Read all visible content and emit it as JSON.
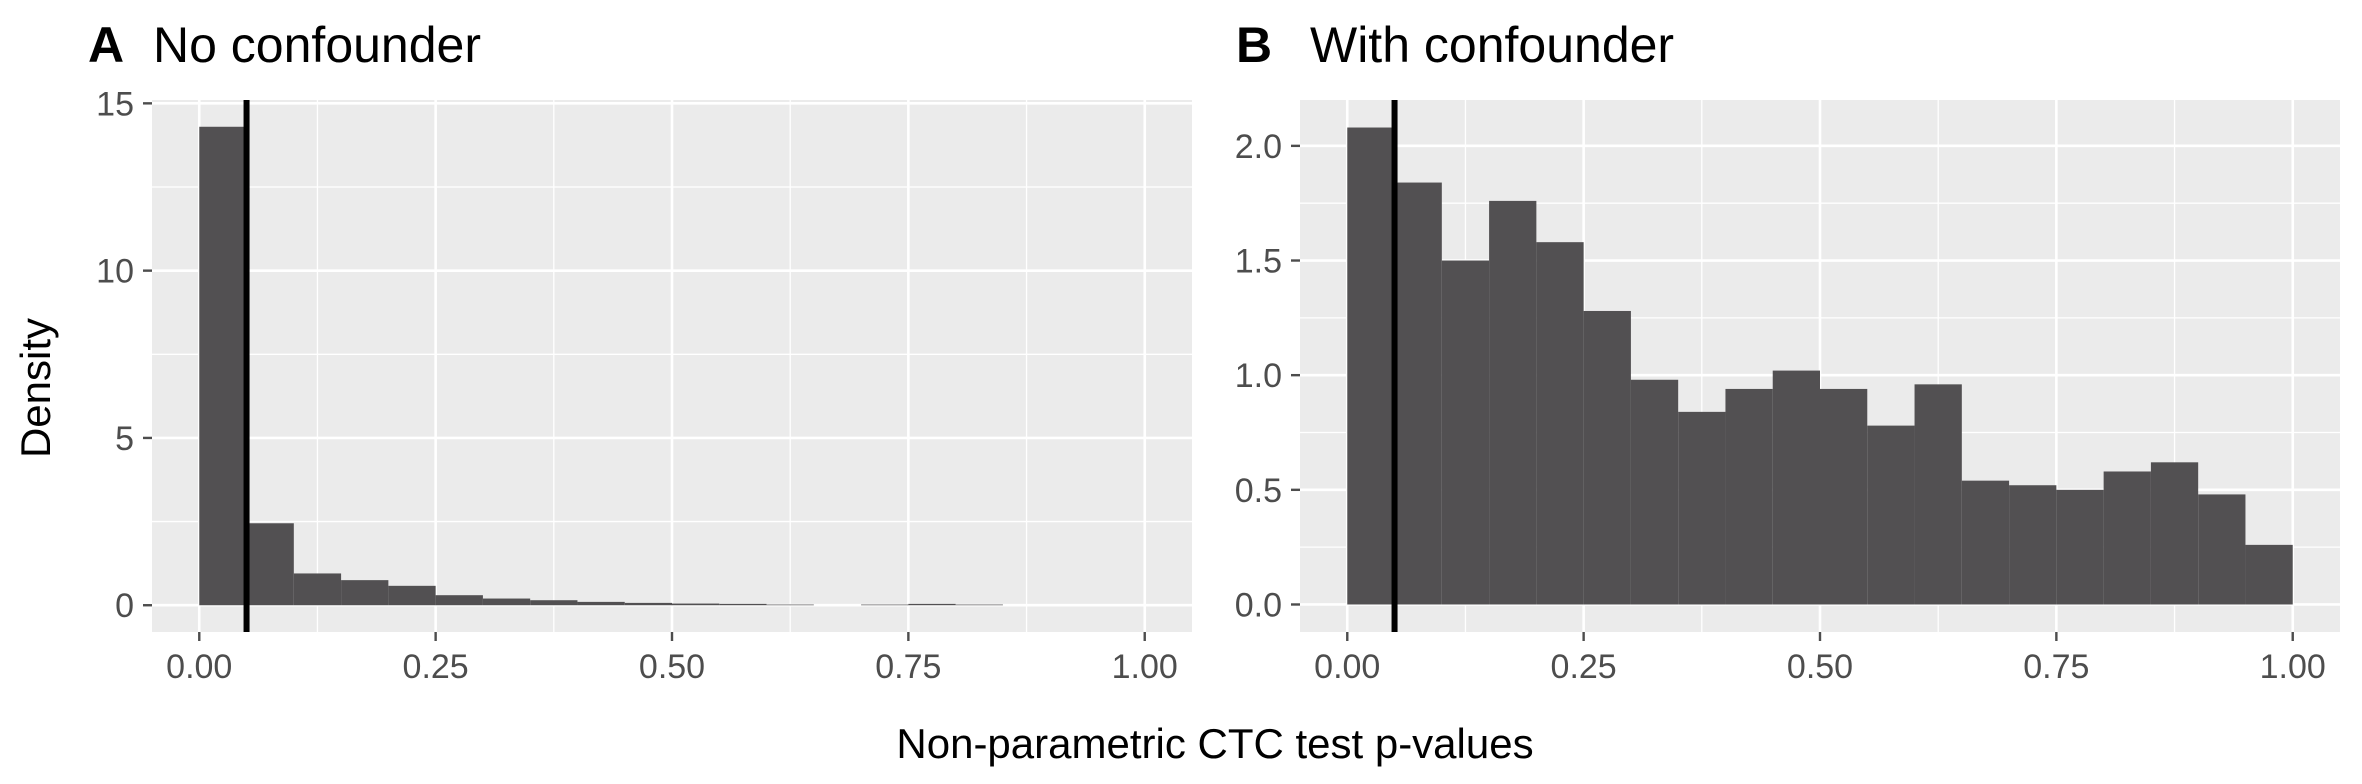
{
  "figure": {
    "xlabel": "Non-parametric CTC test p-values",
    "ylabel": "Density"
  },
  "colors": {
    "panel_bg": "#EBEBEB",
    "grid": "#FFFFFF",
    "bar": "#525052",
    "vline": "#000000",
    "tick": "#4D4D4D"
  },
  "chart_data": [
    {
      "type": "bar",
      "panel_letter": "A",
      "title": "No confounder",
      "xlabel": "Non-parametric CTC test p-values",
      "ylabel": "Density",
      "bin_width": 0.05,
      "bin_starts": [
        0.0,
        0.05,
        0.1,
        0.15,
        0.2,
        0.25,
        0.3,
        0.35,
        0.4,
        0.45,
        0.5,
        0.55,
        0.6,
        0.65,
        0.7,
        0.75,
        0.8
      ],
      "values": [
        14.3,
        2.45,
        0.95,
        0.75,
        0.58,
        0.3,
        0.2,
        0.15,
        0.1,
        0.07,
        0.05,
        0.04,
        0.02,
        0.0,
        0.02,
        0.04,
        0.02
      ],
      "xlim": [
        -0.05,
        1.05
      ],
      "ylim": [
        -0.8,
        15.1
      ],
      "x_ticks": [
        0,
        0.25,
        0.5,
        0.75,
        1
      ],
      "x_tick_labels": [
        "0.00",
        "0.25",
        "0.50",
        "0.75",
        "1.00"
      ],
      "y_ticks": [
        0,
        5,
        10,
        15
      ],
      "y_tick_labels": [
        "0",
        "5",
        "10",
        "15"
      ],
      "vline": 0.05,
      "grid": true
    },
    {
      "type": "bar",
      "panel_letter": "B",
      "title": "With confounder",
      "xlabel": "Non-parametric CTC test p-values",
      "ylabel": "Density",
      "bin_width": 0.05,
      "bin_starts": [
        0.0,
        0.05,
        0.1,
        0.15,
        0.2,
        0.25,
        0.3,
        0.35,
        0.4,
        0.45,
        0.5,
        0.55,
        0.6,
        0.65,
        0.7,
        0.75,
        0.8,
        0.85,
        0.9,
        0.95
      ],
      "values": [
        2.08,
        1.84,
        1.5,
        1.76,
        1.58,
        1.28,
        0.98,
        0.84,
        0.94,
        1.02,
        0.94,
        0.78,
        0.96,
        0.54,
        0.52,
        0.5,
        0.58,
        0.62,
        0.48,
        0.26
      ],
      "xlim": [
        -0.05,
        1.05
      ],
      "ylim": [
        -0.12,
        2.2
      ],
      "x_ticks": [
        0,
        0.25,
        0.5,
        0.75,
        1
      ],
      "x_tick_labels": [
        "0.00",
        "0.25",
        "0.50",
        "0.75",
        "1.00"
      ],
      "y_ticks": [
        0,
        0.5,
        1,
        1.5,
        2
      ],
      "y_tick_labels": [
        "0.0",
        "0.5",
        "1.0",
        "1.5",
        "2.0"
      ],
      "vline": 0.05,
      "grid": true
    }
  ]
}
